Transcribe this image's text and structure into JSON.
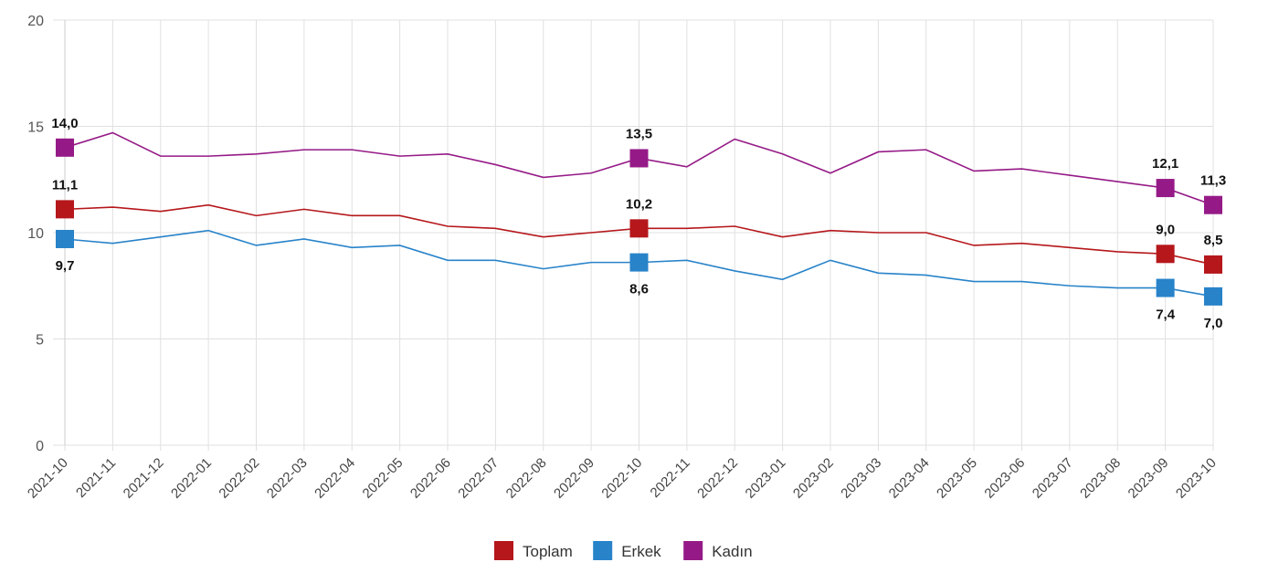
{
  "chart_data": {
    "type": "line",
    "title": "",
    "xlabel": "",
    "ylabel": "",
    "ylim": [
      0,
      20
    ],
    "yticks": [
      "0",
      "5",
      "10",
      "15",
      "20"
    ],
    "grid": true,
    "legend_position": "bottom-center",
    "categories": [
      "2021-10",
      "2021-11",
      "2021-12",
      "2022-01",
      "2022-02",
      "2022-03",
      "2022-04",
      "2022-05",
      "2022-06",
      "2022-07",
      "2022-08",
      "2022-09",
      "2022-10",
      "2022-11",
      "2022-12",
      "2023-01",
      "2023-02",
      "2023-03",
      "2023-04",
      "2023-05",
      "2023-06",
      "2023-07",
      "2023-08",
      "2023-09",
      "2023-10"
    ],
    "labeled_points": [
      0,
      12,
      23,
      24
    ],
    "series": [
      {
        "name": "Toplam",
        "color": "#b5171b",
        "label_pos": "above",
        "values": [
          11.1,
          11.2,
          11.0,
          11.3,
          10.8,
          11.1,
          10.8,
          10.8,
          10.3,
          10.2,
          9.8,
          10.0,
          10.2,
          10.2,
          10.3,
          9.8,
          10.1,
          10.0,
          10.0,
          9.4,
          9.5,
          9.3,
          9.1,
          9.0,
          8.5
        ],
        "point_labels": {
          "0": "11,1",
          "12": "10,2",
          "23": "9,0",
          "24": "8,5"
        }
      },
      {
        "name": "Erkek",
        "color": "#2883c9",
        "label_pos": "below",
        "values": [
          9.7,
          9.5,
          9.8,
          10.1,
          9.4,
          9.7,
          9.3,
          9.4,
          8.7,
          8.7,
          8.3,
          8.6,
          8.6,
          8.7,
          8.2,
          7.8,
          8.7,
          8.1,
          8.0,
          7.7,
          7.7,
          7.5,
          7.4,
          7.4,
          7.0
        ],
        "point_labels": {
          "0": "9,7",
          "12": "8,6",
          "23": "7,4",
          "24": "7,0"
        }
      },
      {
        "name": "Kadın",
        "color": "#951a87",
        "label_pos": "above",
        "values": [
          14.0,
          14.7,
          13.6,
          13.6,
          13.7,
          13.9,
          13.9,
          13.6,
          13.7,
          13.2,
          12.6,
          12.8,
          13.5,
          13.1,
          14.4,
          13.7,
          12.8,
          13.8,
          13.9,
          12.9,
          13.0,
          12.7,
          12.4,
          12.1,
          11.3
        ],
        "point_labels": {
          "0": "14,0",
          "12": "13,5",
          "23": "12,1",
          "24": "11,3"
        }
      }
    ]
  }
}
